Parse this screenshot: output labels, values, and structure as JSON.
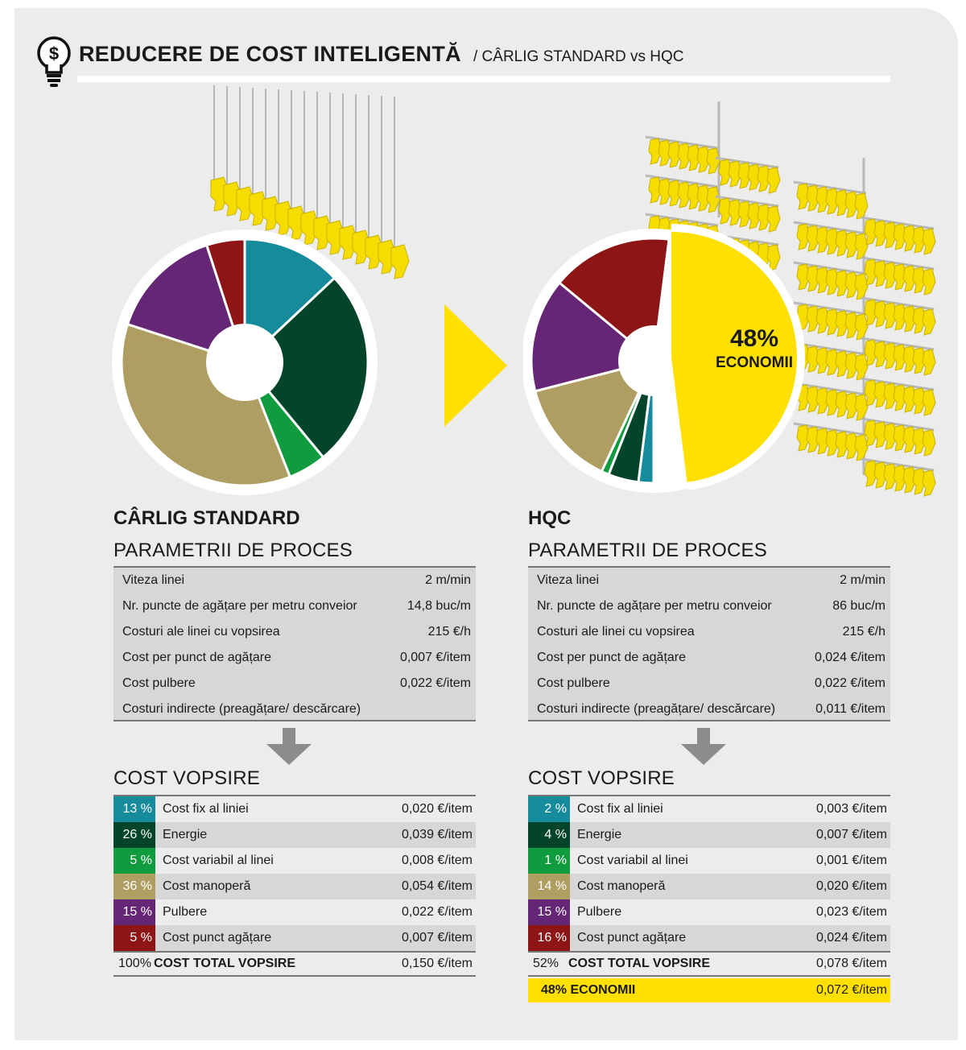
{
  "header": {
    "title": "REDUCERE DE COST INTELIGENTĂ",
    "subtitle": "/ CÂRLIG STANDARD vs HQC",
    "icon": "lightbulb-dollar-icon"
  },
  "colors": {
    "background": "#ececec",
    "accent_yellow": "#ffe000",
    "teal": "#168b9c",
    "dark_green": "#02452a",
    "green": "#0f9b3e",
    "khaki": "#ae9e62",
    "purple": "#642675",
    "dark_red": "#8d1515"
  },
  "chart_data": [
    {
      "type": "pie",
      "title": "CÂRLIG STANDARD",
      "categories": [
        "Cost fix al liniei",
        "Energie",
        "Cost variabil al linei",
        "Cost manoperă",
        "Pulbere",
        "Cost punct agățare"
      ],
      "values": [
        13,
        26,
        5,
        36,
        15,
        5
      ],
      "colors": [
        "#168b9c",
        "#02452a",
        "#0f9b3e",
        "#ae9e62",
        "#642675",
        "#8d1515"
      ]
    },
    {
      "type": "pie",
      "title": "HQC",
      "categories": [
        "Cost fix al liniei",
        "Energie",
        "Cost variabil al linei",
        "Cost manoperă",
        "Pulbere",
        "Cost punct agățare",
        "ECONOMII"
      ],
      "values": [
        2,
        4,
        1,
        14,
        15,
        16,
        48
      ],
      "colors": [
        "#168b9c",
        "#02452a",
        "#0f9b3e",
        "#ae9e62",
        "#642675",
        "#8d1515",
        "#ffe000"
      ],
      "annotation": {
        "value": "48%",
        "label": "ECONOMII"
      }
    }
  ],
  "columns": [
    {
      "title": "CÂRLIG STANDARD",
      "params_title": "PARAMETRII DE PROCES",
      "params": [
        {
          "label": "Viteza linei",
          "value": "2 m/min"
        },
        {
          "label": "Nr. puncte de agățare per metru conveior",
          "value": "14,8 buc/m"
        },
        {
          "label": "Costuri ale linei cu vopsirea",
          "value": "215 €/h"
        },
        {
          "label": "Cost per punct de agățare",
          "value": "0,007 €/item"
        },
        {
          "label": "Cost pulbere",
          "value": "0,022 €/item"
        },
        {
          "label": "Costuri indirecte (preagățare/ descărcare)",
          "value": ""
        }
      ],
      "cost_title": "COST VOPSIRE",
      "costs": [
        {
          "pct": "13 %",
          "label": "Cost fix al liniei",
          "value": "0,020 €/item"
        },
        {
          "pct": "26 %",
          "label": "Energie",
          "value": "0,039 €/item"
        },
        {
          "pct": "5 %",
          "label": "Cost variabil al linei",
          "value": "0,008 €/item"
        },
        {
          "pct": "36 %",
          "label": "Cost manoperă",
          "value": "0,054 €/item"
        },
        {
          "pct": "15 %",
          "label": "Pulbere",
          "value": "0,022 €/item"
        },
        {
          "pct": "5 %",
          "label": "Cost punct agățare",
          "value": "0,007 €/item"
        }
      ],
      "total": {
        "pct": "100%",
        "label": "COST TOTAL VOPSIRE",
        "value": "0,150 €/item"
      }
    },
    {
      "title": "HQC",
      "params_title": "PARAMETRII DE PROCES",
      "params": [
        {
          "label": "Viteza linei",
          "value": "2 m/min"
        },
        {
          "label": "Nr. puncte de agățare per metru conveior",
          "value": "86 buc/m"
        },
        {
          "label": "Costuri ale linei cu vopsirea",
          "value": "215 €/h"
        },
        {
          "label": "Cost per punct de agățare",
          "value": "0,024 €/item"
        },
        {
          "label": "Cost pulbere",
          "value": "0,022 €/item"
        },
        {
          "label": "Costuri indirecte (preagățare/ descărcare)",
          "value": "0,011 €/item"
        }
      ],
      "cost_title": "COST VOPSIRE",
      "costs": [
        {
          "pct": "2 %",
          "label": "Cost fix al liniei",
          "value": "0,003 €/item"
        },
        {
          "pct": "4 %",
          "label": "Energie",
          "value": "0,007 €/item"
        },
        {
          "pct": "1 %",
          "label": "Cost variabil al linei",
          "value": "0,001 €/item"
        },
        {
          "pct": "14 %",
          "label": "Cost manoperă",
          "value": "0,020 €/item"
        },
        {
          "pct": "15 %",
          "label": "Pulbere",
          "value": "0,023 €/item"
        },
        {
          "pct": "16 %",
          "label": "Cost punct agățare",
          "value": "0,024 €/item"
        }
      ],
      "total": {
        "pct": "52%",
        "label": "COST TOTAL VOPSIRE",
        "value": "0,078 €/item"
      },
      "savings": {
        "label": "48% ECONOMII",
        "value": "0,072 €/item"
      }
    }
  ]
}
